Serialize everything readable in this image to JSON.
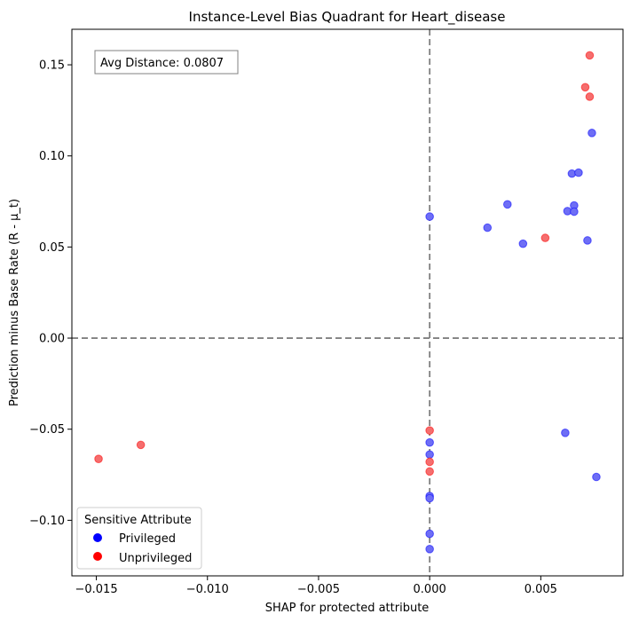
{
  "chart_data": {
    "type": "scatter",
    "title": "Instance-Level Bias Quadrant for Heart_disease",
    "xlabel": "SHAP for protected attribute",
    "ylabel": "Prediction minus Base Rate (R - μ_t)",
    "xlim": [
      -0.0161,
      0.0087
    ],
    "ylim": [
      -0.1305,
      0.1695
    ],
    "xticks": [
      -0.015,
      -0.01,
      -0.005,
      0.0,
      0.005
    ],
    "xtick_labels": [
      "−0.015",
      "−0.010",
      "−0.005",
      "0.000",
      "0.005"
    ],
    "yticks": [
      -0.1,
      -0.05,
      0.0,
      0.05,
      0.1,
      0.15
    ],
    "ytick_labels": [
      "−0.10",
      "−0.05",
      "0.00",
      "0.05",
      "0.10",
      "0.15"
    ],
    "reference_lines": {
      "x": 0,
      "y": 0,
      "style": "dashed",
      "color": "#808080"
    },
    "annotation": "Avg Distance: 0.0807",
    "legend": {
      "title": "Sensitive Attribute",
      "placement": "lower-left",
      "entries": [
        {
          "label": "Privileged",
          "color": "#0000ff"
        },
        {
          "label": "Unprivileged",
          "color": "#ff0000"
        }
      ]
    },
    "series": [
      {
        "name": "Privileged",
        "color": "#0000ff",
        "point_color": "#6e6ef5",
        "points": [
          [
            0.0,
            0.0667
          ],
          [
            0.0026,
            0.0606
          ],
          [
            0.0035,
            0.0734
          ],
          [
            0.0042,
            0.0518
          ],
          [
            0.0062,
            0.0697
          ],
          [
            0.0064,
            0.0903
          ],
          [
            0.0065,
            0.0728
          ],
          [
            0.0065,
            0.0694
          ],
          [
            0.0067,
            0.0908
          ],
          [
            0.0071,
            0.0536
          ],
          [
            0.0073,
            0.1126
          ],
          [
            0.0061,
            -0.052
          ],
          [
            0.0075,
            -0.0762
          ],
          [
            0.0,
            -0.0573
          ],
          [
            0.0,
            -0.0639
          ],
          [
            0.0,
            -0.0867
          ],
          [
            0.0,
            -0.0879
          ],
          [
            0.0,
            -0.1074
          ],
          [
            0.0,
            -0.1158
          ]
        ]
      },
      {
        "name": "Unprivileged",
        "color": "#ff0000",
        "point_color": "#f56e6e",
        "points": [
          [
            0.0072,
            0.1552
          ],
          [
            0.007,
            0.1377
          ],
          [
            0.0072,
            0.1325
          ],
          [
            0.0052,
            0.055
          ],
          [
            -0.0149,
            -0.0663
          ],
          [
            -0.013,
            -0.0586
          ],
          [
            0.0,
            -0.0507
          ],
          [
            0.0,
            -0.0679
          ],
          [
            0.0,
            -0.0732
          ]
        ]
      }
    ]
  }
}
